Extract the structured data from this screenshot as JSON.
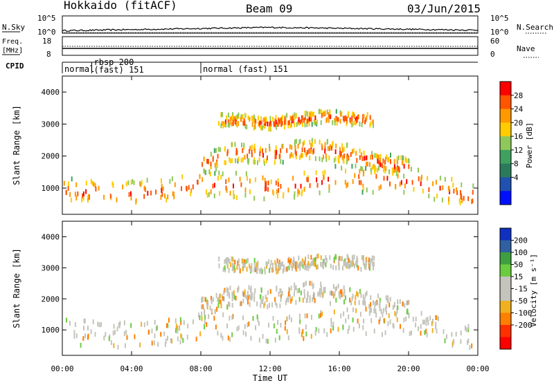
{
  "header": {
    "station": "Hokkaido (fitACF)",
    "beam": "Beam 09",
    "date": "03/Jun/2015"
  },
  "noise_panel": {
    "left_label": "N.Sky",
    "left_ticks": [
      "10^5",
      "10^0"
    ],
    "right_ticks": [
      "10^5",
      "10^0"
    ],
    "right_label": "N.Search"
  },
  "freq_panel": {
    "label_line1": "Freq.",
    "label_line2": "[MHz]",
    "left_ticks": [
      18,
      8
    ],
    "right_ticks": [
      60,
      0
    ],
    "right_label": "Nave"
  },
  "cpid_panel": {
    "label": "CPID",
    "segments": [
      {
        "start_hour": 0.0,
        "lines": [
          "normal"
        ]
      },
      {
        "start_hour": 1.7,
        "lines": [
          "rbsp 200",
          "(fast) 151"
        ]
      },
      {
        "start_hour": 8.0,
        "lines": [
          "normal (fast)  151"
        ]
      }
    ]
  },
  "power_colorbar": {
    "title": "Power [dB]",
    "ticks": [
      28,
      24,
      20,
      16,
      12,
      8,
      4
    ],
    "colors": [
      "#ff0000",
      "#ff5500",
      "#ff9900",
      "#ffcc00",
      "#8fc85a",
      "#3fa060",
      "#2c7a5c",
      "#2050b0",
      "#0010ff"
    ]
  },
  "velocity_colorbar": {
    "title": "Velocity [m s⁻¹]",
    "ticks": [
      200,
      100,
      50,
      15,
      -15,
      -50,
      -100,
      -200
    ],
    "colors": [
      "#1030c0",
      "#3060a0",
      "#3f9e3f",
      "#6ccc40",
      "#c4c4bc",
      "#c4c4bc",
      "#f0b020",
      "#ff7f00",
      "#ff3000",
      "#ff0000"
    ]
  },
  "chart_data": {
    "type": "heatmap",
    "xlabel": "Time UT",
    "ylabel": "Slant Range [km]",
    "x_ticks": [
      "00:00",
      "04:00",
      "08:00",
      "12:00",
      "16:00",
      "20:00",
      "00:00"
    ],
    "xlim_hours": [
      0,
      24
    ],
    "ylim_km": [
      180,
      4500
    ],
    "y_ticks": [
      1000,
      2000,
      3000,
      4000
    ],
    "power_echo_bands": [
      {
        "name": "main",
        "points_hour_km": [
          [
            0,
            1000
          ],
          [
            2,
            950
          ],
          [
            4,
            900
          ],
          [
            6,
            1000
          ],
          [
            8,
            1200
          ],
          [
            10,
            1150
          ],
          [
            12,
            1100
          ],
          [
            14,
            1200
          ],
          [
            16,
            1400
          ],
          [
            18,
            1300
          ],
          [
            20,
            1350
          ],
          [
            22,
            1000
          ],
          [
            24,
            800
          ]
        ],
        "thickness_km": 400
      },
      {
        "name": "upper",
        "points_hour_km": [
          [
            8,
            1800
          ],
          [
            10,
            2200
          ],
          [
            12,
            2100
          ],
          [
            14,
            2300
          ],
          [
            16,
            2200
          ],
          [
            18,
            1900
          ],
          [
            20,
            1700
          ]
        ],
        "thickness_km": 300
      },
      {
        "name": "high",
        "points_hour_km": [
          [
            9,
            3200
          ],
          [
            12,
            3100
          ],
          [
            15,
            3300
          ],
          [
            18,
            3200
          ]
        ],
        "thickness_km": 200
      }
    ],
    "noise_level_log10": {
      "start": 0.4,
      "mid": 1.6,
      "end": 0.6
    },
    "freq_mhz": 11.0,
    "nave": 20
  }
}
